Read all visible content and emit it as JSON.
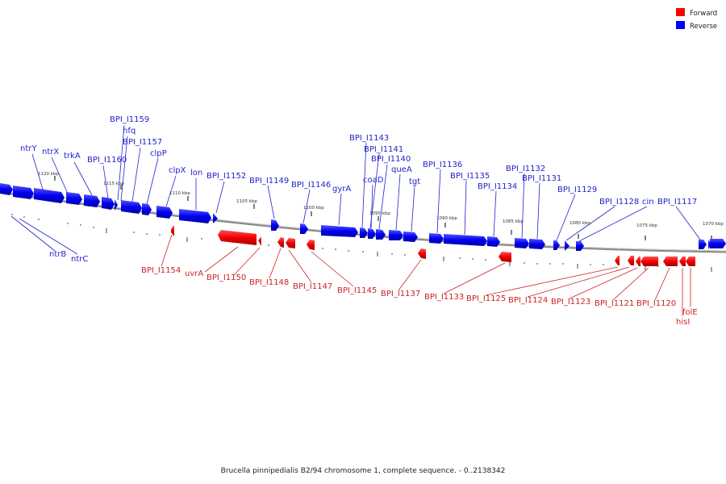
{
  "legend": [
    {
      "label": "Forward",
      "color": "#ff0000"
    },
    {
      "label": "Reverse",
      "color": "#0000ff"
    }
  ],
  "footer": "Brucella pinnipedialis B2/94 chromosome 1, complete sequence. - 0..2138342",
  "scale_labels": [
    "1120 kbp",
    "1115 kbp",
    "1110 kbp",
    "1105 kbp",
    "1100 kbp",
    "1095 kbp",
    "1090 kbp",
    "1085 kbp",
    "1080 kbp",
    "1075 kbp",
    "1070 kbp"
  ],
  "top_genes": [
    "ntrY",
    "ntrX",
    "trkA",
    "BPI_I1160",
    "BPI_I1159",
    "hfq",
    "BPI_I1157",
    "clpP",
    "clpX",
    "lon",
    "BPI_I1152",
    "BPI_I1149",
    "BPI_I1146",
    "gyrA",
    "BPI_I1143",
    "BPI_I1141",
    "BPI_I1140",
    "coaD",
    "queA",
    "tgt",
    "BPI_I1136",
    "BPI_I1135",
    "BPI_I1134",
    "BPI_I1132",
    "BPI_I1131",
    "BPI_I1129",
    "BPI_I1128",
    "cin",
    "BPI_I1117"
  ],
  "top_left_below": [
    "ntrB",
    "ntrC"
  ],
  "bottom_genes": [
    "BPI_I1154",
    "uvrA",
    "BPI_I1150",
    "BPI_I1148",
    "BPI_I1147",
    "BPI_I1145",
    "BPI_I1137",
    "BPI_I1133",
    "BPI_I1125",
    "BPI_I1124",
    "BPI_I1123",
    "BPI_I1121",
    "BPI_I1120",
    "folE",
    "hisI"
  ]
}
